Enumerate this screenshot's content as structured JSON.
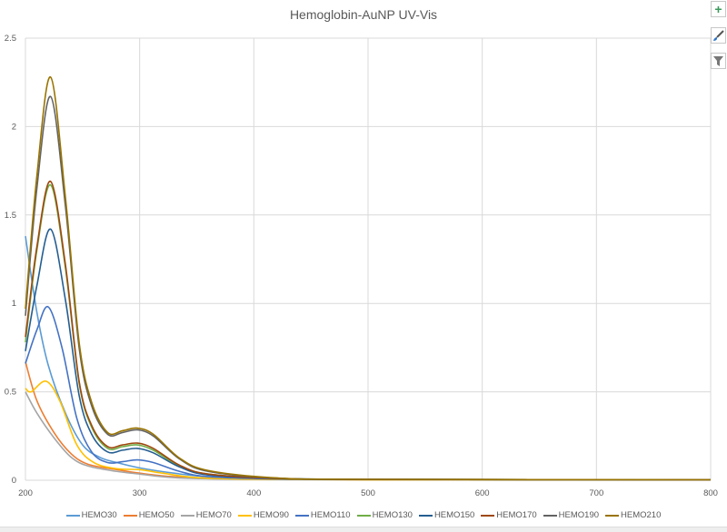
{
  "chart_data": {
    "type": "line",
    "title": "Hemoglobin-AuNP UV-Vis",
    "xlabel": "",
    "ylabel": "",
    "xlim": [
      200,
      800
    ],
    "ylim": [
      0,
      2.5
    ],
    "xticks": [
      200,
      300,
      400,
      500,
      600,
      700,
      800
    ],
    "yticks": [
      0,
      0.5,
      1,
      1.5,
      2,
      2.5
    ],
    "xtick_labels": [
      "200",
      "300",
      "400",
      "500",
      "600",
      "700",
      "800"
    ],
    "ytick_labels": [
      "0",
      "0.5",
      "1",
      "1.5",
      "2",
      "2.5"
    ],
    "grid": true,
    "legend_position": "bottom",
    "series": [
      {
        "name": "HEMO30",
        "color": "#5B9BD5",
        "points": [
          [
            200,
            1.38
          ],
          [
            210,
            0.95
          ],
          [
            220,
            0.65
          ],
          [
            235,
            0.38
          ],
          [
            250,
            0.2
          ],
          [
            265,
            0.13
          ],
          [
            280,
            0.1
          ],
          [
            300,
            0.07
          ],
          [
            330,
            0.04
          ],
          [
            360,
            0.02
          ],
          [
            420,
            0.008
          ],
          [
            500,
            0.004
          ],
          [
            800,
            0.002
          ]
        ]
      },
      {
        "name": "HEMO50",
        "color": "#ED7D31",
        "points": [
          [
            200,
            0.67
          ],
          [
            210,
            0.45
          ],
          [
            225,
            0.27
          ],
          [
            240,
            0.15
          ],
          [
            255,
            0.09
          ],
          [
            280,
            0.06
          ],
          [
            300,
            0.04
          ],
          [
            330,
            0.02
          ],
          [
            380,
            0.008
          ],
          [
            500,
            0.003
          ],
          [
            800,
            0.002
          ]
        ]
      },
      {
        "name": "HEMO70",
        "color": "#A5A5A5",
        "points": [
          [
            200,
            0.5
          ],
          [
            210,
            0.38
          ],
          [
            225,
            0.24
          ],
          [
            240,
            0.13
          ],
          [
            255,
            0.08
          ],
          [
            280,
            0.05
          ],
          [
            300,
            0.035
          ],
          [
            330,
            0.015
          ],
          [
            380,
            0.006
          ],
          [
            500,
            0.003
          ],
          [
            800,
            0.002
          ]
        ]
      },
      {
        "name": "HEMO90",
        "color": "#FFC000",
        "points": [
          [
            200,
            0.52
          ],
          [
            205,
            0.5
          ],
          [
            218,
            0.56
          ],
          [
            230,
            0.45
          ],
          [
            245,
            0.2
          ],
          [
            260,
            0.1
          ],
          [
            280,
            0.065
          ],
          [
            300,
            0.06
          ],
          [
            320,
            0.04
          ],
          [
            350,
            0.015
          ],
          [
            400,
            0.006
          ],
          [
            500,
            0.003
          ],
          [
            800,
            0.002
          ]
        ]
      },
      {
        "name": "HEMO110",
        "color": "#4472C4",
        "points": [
          [
            200,
            0.66
          ],
          [
            210,
            0.85
          ],
          [
            220,
            0.98
          ],
          [
            232,
            0.75
          ],
          [
            245,
            0.35
          ],
          [
            258,
            0.16
          ],
          [
            272,
            0.1
          ],
          [
            285,
            0.105
          ],
          [
            298,
            0.115
          ],
          [
            312,
            0.1
          ],
          [
            335,
            0.05
          ],
          [
            360,
            0.02
          ],
          [
            420,
            0.007
          ],
          [
            500,
            0.004
          ],
          [
            800,
            0.003
          ]
        ]
      },
      {
        "name": "HEMO130",
        "color": "#70AD47",
        "points": [
          [
            200,
            0.78
          ],
          [
            210,
            1.3
          ],
          [
            222,
            1.67
          ],
          [
            235,
            1.2
          ],
          [
            247,
            0.55
          ],
          [
            258,
            0.3
          ],
          [
            272,
            0.18
          ],
          [
            285,
            0.19
          ],
          [
            298,
            0.2
          ],
          [
            312,
            0.17
          ],
          [
            335,
            0.08
          ],
          [
            360,
            0.035
          ],
          [
            420,
            0.01
          ],
          [
            500,
            0.005
          ],
          [
            800,
            0.003
          ]
        ]
      },
      {
        "name": "HEMO150",
        "color": "#255E91",
        "points": [
          [
            200,
            0.73
          ],
          [
            210,
            1.1
          ],
          [
            222,
            1.42
          ],
          [
            235,
            1.02
          ],
          [
            247,
            0.48
          ],
          [
            258,
            0.26
          ],
          [
            272,
            0.16
          ],
          [
            285,
            0.17
          ],
          [
            298,
            0.18
          ],
          [
            312,
            0.155
          ],
          [
            335,
            0.075
          ],
          [
            360,
            0.03
          ],
          [
            420,
            0.01
          ],
          [
            500,
            0.005
          ],
          [
            800,
            0.003
          ]
        ]
      },
      {
        "name": "HEMO170",
        "color": "#9E480E",
        "points": [
          [
            200,
            0.81
          ],
          [
            210,
            1.32
          ],
          [
            222,
            1.69
          ],
          [
            235,
            1.22
          ],
          [
            247,
            0.56
          ],
          [
            258,
            0.31
          ],
          [
            272,
            0.19
          ],
          [
            285,
            0.2
          ],
          [
            298,
            0.21
          ],
          [
            312,
            0.18
          ],
          [
            335,
            0.085
          ],
          [
            360,
            0.035
          ],
          [
            420,
            0.01
          ],
          [
            500,
            0.005
          ],
          [
            800,
            0.003
          ]
        ]
      },
      {
        "name": "HEMO190",
        "color": "#636363",
        "points": [
          [
            200,
            0.93
          ],
          [
            210,
            1.65
          ],
          [
            222,
            2.17
          ],
          [
            235,
            1.55
          ],
          [
            247,
            0.75
          ],
          [
            258,
            0.42
          ],
          [
            272,
            0.26
          ],
          [
            285,
            0.27
          ],
          [
            298,
            0.285
          ],
          [
            312,
            0.25
          ],
          [
            335,
            0.12
          ],
          [
            360,
            0.05
          ],
          [
            420,
            0.012
          ],
          [
            500,
            0.005
          ],
          [
            800,
            0.003
          ]
        ]
      },
      {
        "name": "HEMO210",
        "color": "#997300",
        "points": [
          [
            200,
            0.97
          ],
          [
            210,
            1.72
          ],
          [
            222,
            2.28
          ],
          [
            235,
            1.6
          ],
          [
            247,
            0.78
          ],
          [
            258,
            0.44
          ],
          [
            272,
            0.27
          ],
          [
            285,
            0.28
          ],
          [
            298,
            0.295
          ],
          [
            312,
            0.26
          ],
          [
            335,
            0.125
          ],
          [
            360,
            0.055
          ],
          [
            420,
            0.013
          ],
          [
            500,
            0.005
          ],
          [
            800,
            0.003
          ]
        ]
      }
    ]
  },
  "toolbar": {
    "add_icon": "plus-icon",
    "style_icon": "brush-icon",
    "filter_icon": "filter-icon"
  }
}
